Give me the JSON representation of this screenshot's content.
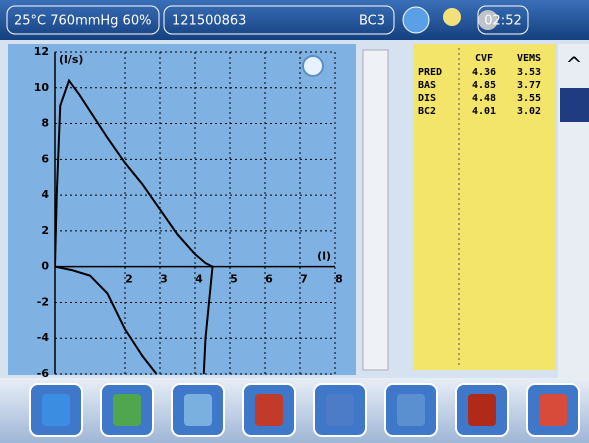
{
  "header": {
    "conditions": "25°C 760mmHg 60%",
    "patient_id": "121500863",
    "code": "BC3",
    "time": "02:52"
  },
  "chart_data": {
    "type": "line",
    "y_label": "(l/s)",
    "x_label": "(l)",
    "xlim": [
      0,
      8
    ],
    "ylim": [
      -6,
      12
    ],
    "xticks": [
      2,
      3,
      4,
      5,
      6,
      7,
      8
    ],
    "yticks": [
      -6,
      -4,
      -2,
      0,
      2,
      4,
      6,
      8,
      10,
      12
    ],
    "grid": true,
    "series": [
      {
        "color": "#000000",
        "x": [
          0,
          0.05,
          0.15,
          0.4,
          0.7,
          1,
          1.5,
          2,
          2.5,
          3,
          3.5,
          4,
          4.3,
          4.5
        ],
        "values": [
          0,
          4,
          9,
          10.4,
          9.6,
          8.7,
          7.2,
          5.8,
          4.6,
          3.2,
          1.8,
          0.7,
          0.2,
          0
        ]
      },
      {
        "color": "#000000",
        "x": [
          0,
          0.5,
          1,
          1.5,
          2,
          2.5,
          2.9
        ],
        "values": [
          0,
          -0.2,
          -0.5,
          -1.5,
          -3.5,
          -5,
          -6
        ]
      },
      {
        "color": "#000000",
        "x": [
          4.5,
          4.45,
          4.4,
          4.3,
          4.25
        ],
        "values": [
          0,
          -1,
          -2,
          -4,
          -6
        ]
      }
    ]
  },
  "table": {
    "columns": [
      "CVF",
      "VEMS"
    ],
    "rows": [
      {
        "label": "PRED",
        "values": [
          4.36,
          3.53
        ]
      },
      {
        "label": "BAS",
        "values": [
          4.85,
          3.77
        ]
      },
      {
        "label": "DIS",
        "values": [
          4.48,
          3.55
        ]
      },
      {
        "label": "BC2",
        "values": [
          4.01,
          3.02
        ]
      }
    ]
  }
}
